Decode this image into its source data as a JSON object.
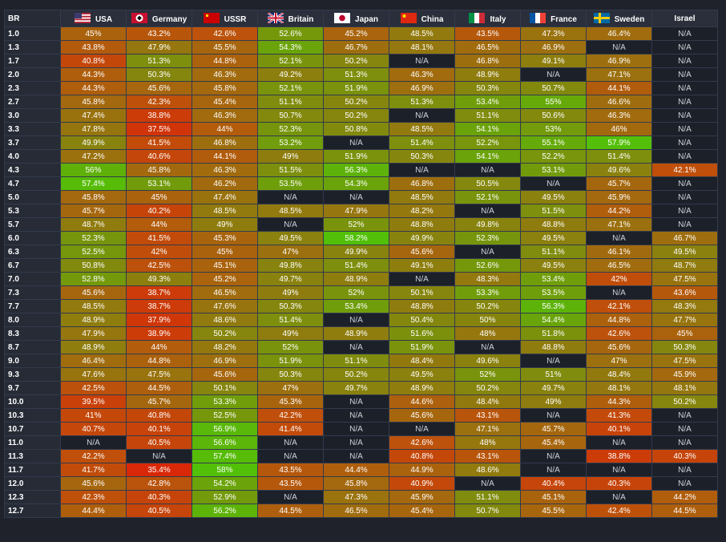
{
  "table": {
    "header": [
      "BR",
      "USA",
      "Germany",
      "USSR",
      "Britain",
      "Japan",
      "China",
      "Italy",
      "France",
      "Sweden",
      "Israel"
    ],
    "rows": [
      [
        "1.0",
        "45%",
        "43.2%",
        "42.6%",
        "52.6%",
        "45.2%",
        "48.5%",
        "43.5%",
        "47.3%",
        "46.4%",
        "N/A"
      ],
      [
        "1.3",
        "43.8%",
        "47.9%",
        "45.5%",
        "54.3%",
        "46.7%",
        "48.1%",
        "46.5%",
        "46.9%",
        "N/A",
        "N/A"
      ],
      [
        "1.7",
        "40.8%",
        "51.3%",
        "44.8%",
        "52.1%",
        "50.2%",
        "N/A",
        "46.8%",
        "49.1%",
        "46.9%",
        "N/A"
      ],
      [
        "2.0",
        "44.3%",
        "50.3%",
        "46.3%",
        "49.2%",
        "51.3%",
        "46.3%",
        "48.9%",
        "N/A",
        "47.1%",
        "N/A"
      ],
      [
        "2.3",
        "44.3%",
        "45.6%",
        "45.8%",
        "52.1%",
        "51.9%",
        "46.9%",
        "50.3%",
        "50.7%",
        "44.1%",
        "N/A"
      ],
      [
        "2.7",
        "45.8%",
        "42.3%",
        "45.4%",
        "51.1%",
        "50.2%",
        "51.3%",
        "53.4%",
        "55%",
        "46.6%",
        "N/A"
      ],
      [
        "3.0",
        "47.4%",
        "38.8%",
        "46.3%",
        "50.7%",
        "50.2%",
        "N/A",
        "51.1%",
        "50.6%",
        "46.3%",
        "N/A"
      ],
      [
        "3.3",
        "47.8%",
        "37.5%",
        "44%",
        "52.3%",
        "50.8%",
        "48.5%",
        "54.1%",
        "53%",
        "46%",
        "N/A"
      ],
      [
        "3.7",
        "49.9%",
        "41.5%",
        "46.8%",
        "53.2%",
        "N/A",
        "51.4%",
        "52.2%",
        "55.1%",
        "57.9%",
        "N/A"
      ],
      [
        "4.0",
        "47.2%",
        "40.6%",
        "44.1%",
        "49%",
        "51.9%",
        "50.3%",
        "54.1%",
        "52.2%",
        "51.4%",
        "N/A"
      ],
      [
        "4.3",
        "56%",
        "45.8%",
        "46.3%",
        "51.5%",
        "56.3%",
        "N/A",
        "N/A",
        "53.1%",
        "49.6%",
        "42.1%"
      ],
      [
        "4.7",
        "57.4%",
        "53.1%",
        "46.2%",
        "53.5%",
        "54.3%",
        "46.8%",
        "50.5%",
        "N/A",
        "45.7%",
        "N/A"
      ],
      [
        "5.0",
        "45.8%",
        "45%",
        "47.4%",
        "N/A",
        "N/A",
        "48.5%",
        "52.1%",
        "49.5%",
        "45.9%",
        "N/A"
      ],
      [
        "5.3",
        "45.7%",
        "40.2%",
        "48.5%",
        "48.5%",
        "47.9%",
        "48.2%",
        "N/A",
        "51.5%",
        "44.2%",
        "N/A"
      ],
      [
        "5.7",
        "48.7%",
        "44%",
        "49%",
        "N/A",
        "52%",
        "48.8%",
        "49.8%",
        "48.8%",
        "47.1%",
        "N/A"
      ],
      [
        "6.0",
        "52.3%",
        "41.5%",
        "45.3%",
        "49.5%",
        "58.2%",
        "49.9%",
        "52.3%",
        "49.5%",
        "N/A",
        "46.7%"
      ],
      [
        "6.3",
        "52.5%",
        "42%",
        "45%",
        "47%",
        "49.9%",
        "45.6%",
        "N/A",
        "51.1%",
        "46.1%",
        "49.5%"
      ],
      [
        "6.7",
        "50.8%",
        "42.5%",
        "45.1%",
        "49.8%",
        "51.4%",
        "49.1%",
        "52.6%",
        "49.5%",
        "46.5%",
        "48.7%"
      ],
      [
        "7.0",
        "52.8%",
        "49.3%",
        "45.2%",
        "49.7%",
        "48.9%",
        "N/A",
        "48.3%",
        "53.4%",
        "42%",
        "47.5%"
      ],
      [
        "7.3",
        "45.6%",
        "38.7%",
        "46.5%",
        "49%",
        "52%",
        "50.1%",
        "53.3%",
        "53.5%",
        "N/A",
        "43.6%"
      ],
      [
        "7.7",
        "48.5%",
        "38.7%",
        "47.6%",
        "50.3%",
        "53.4%",
        "48.8%",
        "50.2%",
        "56.3%",
        "42.1%",
        "48.3%"
      ],
      [
        "8.0",
        "48.9%",
        "37.9%",
        "48.6%",
        "51.4%",
        "N/A",
        "50.4%",
        "50%",
        "54.4%",
        "44.8%",
        "47.7%"
      ],
      [
        "8.3",
        "47.9%",
        "38.9%",
        "50.2%",
        "49%",
        "48.9%",
        "51.6%",
        "48%",
        "51.8%",
        "42.6%",
        "45%"
      ],
      [
        "8.7",
        "48.9%",
        "44%",
        "48.2%",
        "52%",
        "N/A",
        "51.9%",
        "N/A",
        "48.8%",
        "45.6%",
        "50.3%"
      ],
      [
        "9.0",
        "46.4%",
        "44.8%",
        "46.9%",
        "51.9%",
        "51.1%",
        "48.4%",
        "49.6%",
        "N/A",
        "47%",
        "47.5%"
      ],
      [
        "9.3",
        "47.6%",
        "47.5%",
        "45.6%",
        "50.3%",
        "50.2%",
        "49.5%",
        "52%",
        "51%",
        "48.4%",
        "45.9%"
      ],
      [
        "9.7",
        "42.5%",
        "44.5%",
        "50.1%",
        "47%",
        "49.7%",
        "48.9%",
        "50.2%",
        "49.7%",
        "48.1%",
        "48.1%"
      ],
      [
        "10.0",
        "39.5%",
        "45.7%",
        "53.3%",
        "45.3%",
        "N/A",
        "44.6%",
        "48.4%",
        "49%",
        "44.3%",
        "50.2%"
      ],
      [
        "10.3",
        "41%",
        "40.8%",
        "52.5%",
        "42.2%",
        "N/A",
        "45.6%",
        "43.1%",
        "N/A",
        "41.3%",
        "N/A"
      ],
      [
        "10.7",
        "40.7%",
        "40.1%",
        "56.9%",
        "41.4%",
        "N/A",
        "N/A",
        "47.1%",
        "45.7%",
        "40.1%",
        "N/A"
      ],
      [
        "11.0",
        "N/A",
        "40.5%",
        "56.6%",
        "N/A",
        "N/A",
        "42.6%",
        "48%",
        "45.4%",
        "N/A",
        "N/A"
      ],
      [
        "11.3",
        "42.2%",
        "N/A",
        "57.4%",
        "N/A",
        "N/A",
        "40.8%",
        "43.1%",
        "N/A",
        "38.8%",
        "40.3%"
      ],
      [
        "11.7",
        "41.7%",
        "35.4%",
        "58%",
        "43.5%",
        "44.4%",
        "44.9%",
        "48.6%",
        "N/A",
        "N/A",
        "N/A"
      ],
      [
        "12.0",
        "45.6%",
        "42.8%",
        "54.2%",
        "43.5%",
        "45.8%",
        "40.9%",
        "N/A",
        "40.4%",
        "40.3%",
        "N/A"
      ],
      [
        "12.3",
        "42.3%",
        "40.3%",
        "52.9%",
        "N/A",
        "47.3%",
        "45.9%",
        "51.1%",
        "45.1%",
        "N/A",
        "44.2%"
      ],
      [
        "12.7",
        "44.4%",
        "40.5%",
        "56.2%",
        "44.5%",
        "46.5%",
        "45.4%",
        "50.7%",
        "45.5%",
        "42.4%",
        "44.5%"
      ]
    ]
  }
}
